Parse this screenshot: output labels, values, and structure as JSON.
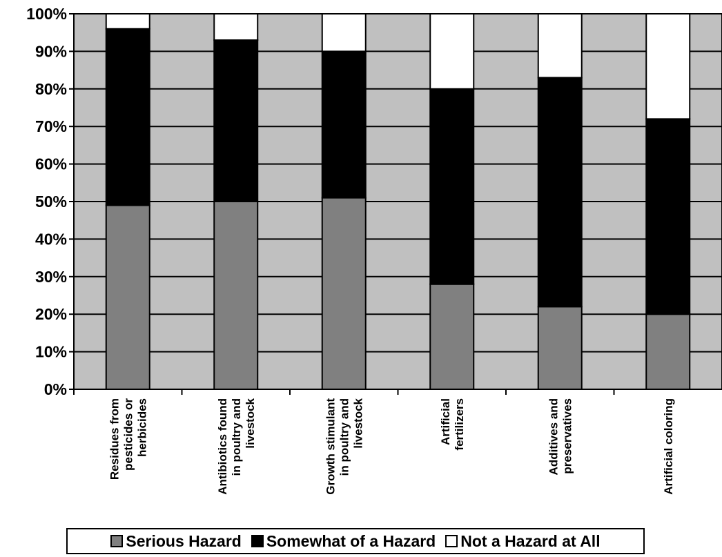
{
  "chart_data": {
    "type": "bar",
    "stacked": true,
    "percent_stacked": true,
    "categories": [
      [
        "Residues from",
        "pesticides or",
        "herbicides"
      ],
      [
        "Antibiotics found",
        "in poultry and",
        "livestock"
      ],
      [
        "Growth stimulant",
        "in poultry and",
        "livestock"
      ],
      [
        "Artificial",
        "fertilizers"
      ],
      [
        "Additives and",
        "preservatives"
      ],
      [
        "Artificial coloring"
      ]
    ],
    "series": [
      {
        "name": "Serious Hazard",
        "color": "#808080",
        "values": [
          49,
          50,
          51,
          28,
          22,
          20
        ]
      },
      {
        "name": "Somewhat of a Hazard",
        "color": "#000000",
        "values": [
          47,
          43,
          39,
          52,
          61,
          52
        ]
      },
      {
        "name": "Not a Hazard at All",
        "color": "#ffffff",
        "values": [
          4,
          7,
          10,
          20,
          17,
          28
        ]
      }
    ],
    "ylim": [
      0,
      100
    ],
    "yticks": [
      "0%",
      "10%",
      "20%",
      "30%",
      "40%",
      "50%",
      "60%",
      "70%",
      "80%",
      "90%",
      "100%"
    ],
    "plot_background": "#c0c0c0",
    "grid": true,
    "legend_position": "bottom",
    "title": "",
    "xlabel": "",
    "ylabel": ""
  }
}
